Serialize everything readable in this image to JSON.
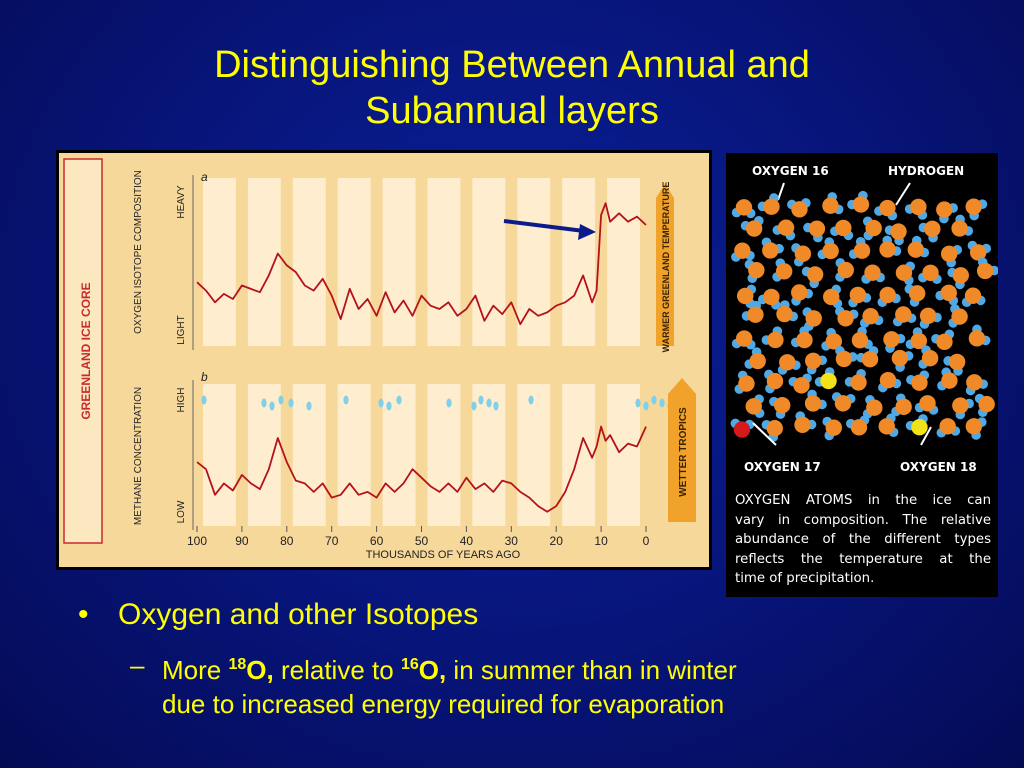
{
  "slide": {
    "title_line1": "Distinguishing Between Annual and",
    "title_line2": "Subannual layers"
  },
  "left_figure": {
    "side_label": "GREENLAND ICE CORE",
    "panel_a_letter": "a",
    "panel_b_letter": "b",
    "panel_a_ylabel": "OXYGEN ISOTOPE COMPOSITION",
    "panel_a_top": "HEAVY",
    "panel_a_bottom": "LIGHT",
    "panel_b_ylabel": "METHANE CONCENTRATION",
    "panel_b_top": "HIGH",
    "panel_b_bottom": "LOW",
    "arrow_a_label": "WARMER GREENLAND TEMPERATURE",
    "arrow_b_label": "WETTER TROPICS"
  },
  "chart_data": {
    "type": "line",
    "xlabel": "THOUSANDS OF YEARS AGO",
    "x_ticks": [
      "100",
      "90",
      "80",
      "70",
      "60",
      "50",
      "40",
      "30",
      "20",
      "10",
      "0"
    ],
    "xlim": [
      100,
      0
    ],
    "series": [
      {
        "panel": "a",
        "x": [
          100,
          98,
          96,
          94,
          92,
          90,
          88,
          86,
          84,
          82,
          80,
          78,
          76,
          74,
          72,
          70,
          68,
          66,
          64,
          62,
          60,
          58,
          56,
          54,
          52,
          50,
          48,
          46,
          44,
          42,
          40,
          38,
          36,
          34,
          32,
          30,
          28,
          26,
          24,
          22,
          20,
          18,
          16,
          14,
          12,
          11,
          10,
          9,
          8,
          6,
          4,
          2,
          0
        ],
        "values": [
          0.38,
          0.33,
          0.26,
          0.31,
          0.28,
          0.36,
          0.34,
          0.32,
          0.42,
          0.55,
          0.48,
          0.44,
          0.36,
          0.33,
          0.4,
          0.3,
          0.16,
          0.34,
          0.22,
          0.28,
          0.18,
          0.32,
          0.2,
          0.27,
          0.18,
          0.3,
          0.24,
          0.22,
          0.26,
          0.18,
          0.22,
          0.3,
          0.15,
          0.24,
          0.19,
          0.26,
          0.13,
          0.22,
          0.18,
          0.2,
          0.24,
          0.26,
          0.3,
          0.42,
          0.26,
          0.33,
          0.78,
          0.85,
          0.74,
          0.79,
          0.74,
          0.77,
          0.72
        ]
      },
      {
        "panel": "b",
        "x": [
          100,
          98,
          96,
          94,
          92,
          90,
          88,
          86,
          84,
          82,
          80,
          78,
          76,
          74,
          72,
          70,
          68,
          66,
          64,
          62,
          60,
          58,
          56,
          54,
          52,
          50,
          48,
          46,
          44,
          42,
          40,
          38,
          36,
          34,
          32,
          30,
          28,
          26,
          24,
          22,
          20,
          18,
          16,
          14,
          12,
          11,
          10,
          9,
          8,
          6,
          4,
          2,
          0
        ],
        "values": [
          0.45,
          0.4,
          0.22,
          0.3,
          0.25,
          0.36,
          0.3,
          0.26,
          0.4,
          0.62,
          0.45,
          0.32,
          0.3,
          0.24,
          0.3,
          0.2,
          0.22,
          0.3,
          0.22,
          0.24,
          0.2,
          0.3,
          0.24,
          0.3,
          0.4,
          0.34,
          0.28,
          0.24,
          0.3,
          0.24,
          0.34,
          0.26,
          0.3,
          0.24,
          0.32,
          0.3,
          0.24,
          0.2,
          0.14,
          0.1,
          0.14,
          0.24,
          0.4,
          0.62,
          0.48,
          0.56,
          0.7,
          0.6,
          0.64,
          0.52,
          0.58,
          0.56,
          0.7
        ]
      }
    ]
  },
  "right_figure": {
    "label_o16": "OXYGEN 16",
    "label_h": "HYDROGEN",
    "label_o17": "OXYGEN 17",
    "label_o18": "OXYGEN 18",
    "caption_l1": "OXYGEN ATOMS in the ice can",
    "caption_l2": "vary in composition. The relative",
    "caption_l3": "abundance of the different types",
    "caption_l4": "reflects the temperature at the",
    "caption_l5": "time of precipitation."
  },
  "bullets": {
    "b1": "Oxygen and other Isotopes",
    "b2_more": "More",
    "b2_sup1": "18",
    "b2_o1": "O,",
    "b2_rel": "relative to",
    "b2_sup2": "16",
    "b2_o2": "O,",
    "b2_rest1": "in summer than in winter",
    "b2_rest2": "due to increased energy required for evaporation"
  },
  "colors": {
    "background": "#071478",
    "title": "#ffff00",
    "series": "#b5121b",
    "chart_bg": "#f7d89b",
    "orange_arrow": "#f0a22a",
    "oxygen16": "#f08a28",
    "hydrogen": "#4fa9e6",
    "oxygen17": "#d41a1a",
    "oxygen18": "#f2e21a"
  }
}
